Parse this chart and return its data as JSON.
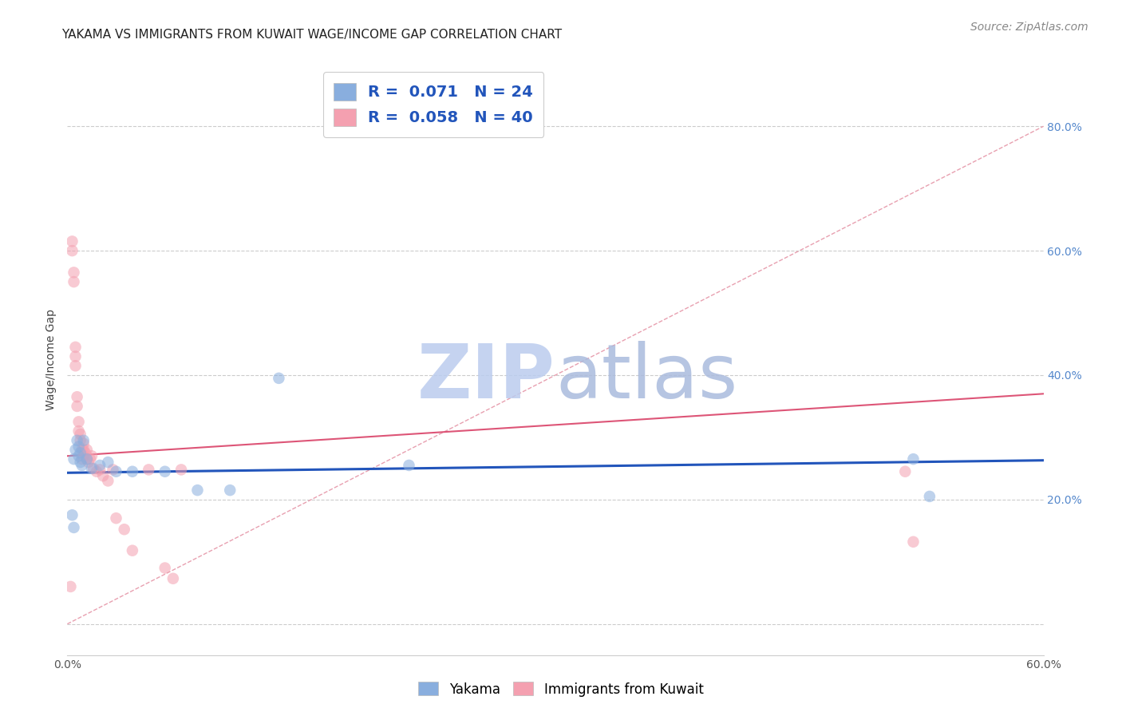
{
  "title": "YAKAMA VS IMMIGRANTS FROM KUWAIT WAGE/INCOME GAP CORRELATION CHART",
  "source": "Source: ZipAtlas.com",
  "ylabel": "Wage/Income Gap",
  "xlim": [
    0.0,
    0.6
  ],
  "ylim": [
    -0.05,
    0.9
  ],
  "legend_labels": [
    "Yakama",
    "Immigrants from Kuwait"
  ],
  "blue_color": "#89AEDE",
  "pink_color": "#F4A0B0",
  "blue_line_color": "#2255BB",
  "pink_line_color": "#DD5577",
  "diag_dashed_color": "#E8A0B0",
  "watermark_zip": "ZIP",
  "watermark_atlas": "atlas",
  "R_blue": 0.071,
  "N_blue": 24,
  "R_pink": 0.058,
  "N_pink": 40,
  "blue_scatter_x": [
    0.003,
    0.004,
    0.004,
    0.005,
    0.006,
    0.007,
    0.007,
    0.008,
    0.008,
    0.009,
    0.01,
    0.012,
    0.015,
    0.02,
    0.025,
    0.03,
    0.04,
    0.06,
    0.08,
    0.1,
    0.13,
    0.21,
    0.52,
    0.53
  ],
  "blue_scatter_y": [
    0.175,
    0.155,
    0.265,
    0.28,
    0.295,
    0.27,
    0.285,
    0.26,
    0.275,
    0.255,
    0.295,
    0.265,
    0.25,
    0.255,
    0.26,
    0.245,
    0.245,
    0.245,
    0.215,
    0.215,
    0.395,
    0.255,
    0.265,
    0.205
  ],
  "pink_scatter_x": [
    0.002,
    0.003,
    0.003,
    0.004,
    0.004,
    0.005,
    0.005,
    0.005,
    0.006,
    0.006,
    0.007,
    0.007,
    0.008,
    0.008,
    0.009,
    0.009,
    0.01,
    0.01,
    0.01,
    0.011,
    0.012,
    0.012,
    0.013,
    0.014,
    0.015,
    0.016,
    0.018,
    0.02,
    0.022,
    0.025,
    0.028,
    0.03,
    0.035,
    0.04,
    0.05,
    0.06,
    0.065,
    0.07,
    0.515,
    0.52
  ],
  "pink_scatter_y": [
    0.06,
    0.6,
    0.615,
    0.55,
    0.565,
    0.415,
    0.43,
    0.445,
    0.35,
    0.365,
    0.31,
    0.325,
    0.295,
    0.305,
    0.265,
    0.28,
    0.27,
    0.28,
    0.29,
    0.275,
    0.265,
    0.28,
    0.26,
    0.265,
    0.27,
    0.25,
    0.245,
    0.248,
    0.238,
    0.23,
    0.248,
    0.17,
    0.152,
    0.118,
    0.248,
    0.09,
    0.073,
    0.248,
    0.245,
    0.132
  ],
  "blue_trend_x": [
    0.0,
    0.6
  ],
  "blue_trend_y": [
    0.243,
    0.263
  ],
  "pink_trend_x": [
    0.0,
    0.6
  ],
  "pink_trend_y": [
    0.27,
    0.37
  ],
  "diag_line_x": [
    0.0,
    0.6
  ],
  "diag_line_y": [
    0.0,
    0.8
  ],
  "title_fontsize": 11,
  "axis_label_fontsize": 10,
  "tick_fontsize": 10,
  "legend_fontsize": 14,
  "source_fontsize": 10,
  "scatter_size": 110,
  "scatter_alpha": 0.55,
  "background_color": "#FFFFFF"
}
